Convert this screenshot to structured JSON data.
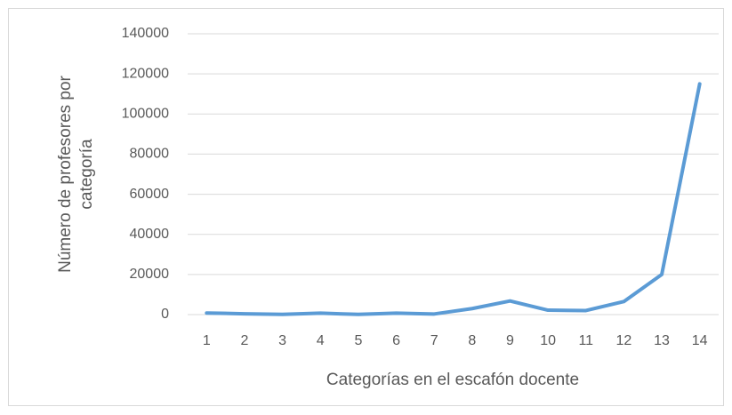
{
  "chart_data": {
    "type": "line",
    "xlabel": "Categorías en el escafón docente",
    "ylabel": [
      "Número de profesores por",
      "categoría"
    ],
    "categories": [
      "1",
      "2",
      "3",
      "4",
      "5",
      "6",
      "7",
      "8",
      "9",
      "10",
      "11",
      "12",
      "13",
      "14"
    ],
    "series": [
      {
        "color": "#5b9bd5",
        "values": [
          800,
          400,
          100,
          700,
          100,
          700,
          300,
          3000,
          6800,
          2200,
          2000,
          6500,
          20000,
          115000
        ]
      }
    ],
    "ylim": [
      0,
      140000
    ],
    "yticks": [
      0,
      20000,
      40000,
      60000,
      80000,
      100000,
      120000,
      140000
    ],
    "grid": true
  }
}
